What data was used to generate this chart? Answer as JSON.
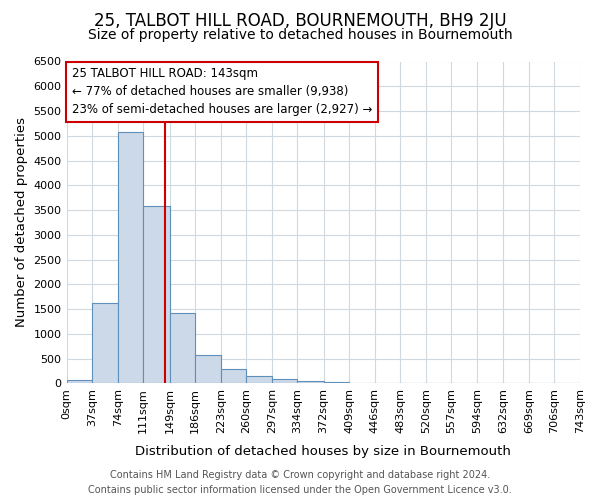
{
  "title": "25, TALBOT HILL ROAD, BOURNEMOUTH, BH9 2JU",
  "subtitle": "Size of property relative to detached houses in Bournemouth",
  "xlabel": "Distribution of detached houses by size in Bournemouth",
  "ylabel": "Number of detached properties",
  "bin_edges": [
    0,
    37,
    74,
    111,
    149,
    186,
    223,
    260,
    297,
    334,
    372,
    409,
    446,
    483,
    520,
    557,
    594,
    632,
    669,
    706,
    743
  ],
  "bin_counts": [
    75,
    1620,
    5080,
    3590,
    1420,
    580,
    295,
    145,
    80,
    50,
    30,
    0,
    0,
    0,
    0,
    0,
    0,
    0,
    0,
    0
  ],
  "bar_face_color": "#ccd9e8",
  "bar_edge_color": "#5f8fbb",
  "property_line_x": 143,
  "property_line_color": "#cc0000",
  "annotation_text": "25 TALBOT HILL ROAD: 143sqm\n← 77% of detached houses are smaller (9,938)\n23% of semi-detached houses are larger (2,927) →",
  "annotation_box_edge_color": "#cc0000",
  "ylim": [
    0,
    6500
  ],
  "xlim": [
    0,
    743
  ],
  "tick_labels": [
    "0sqm",
    "37sqm",
    "74sqm",
    "111sqm",
    "149sqm",
    "186sqm",
    "223sqm",
    "260sqm",
    "297sqm",
    "334sqm",
    "372sqm",
    "409sqm",
    "446sqm",
    "483sqm",
    "520sqm",
    "557sqm",
    "594sqm",
    "632sqm",
    "669sqm",
    "706sqm",
    "743sqm"
  ],
  "footer_line1": "Contains HM Land Registry data © Crown copyright and database right 2024.",
  "footer_line2": "Contains public sector information licensed under the Open Government Licence v3.0.",
  "plot_bg_color": "#ffffff",
  "fig_bg_color": "#ffffff",
  "grid_color": "#d0d8e0",
  "title_fontsize": 12,
  "subtitle_fontsize": 10,
  "axis_label_fontsize": 9.5,
  "tick_fontsize": 8,
  "footer_fontsize": 7,
  "annot_fontsize": 8.5
}
